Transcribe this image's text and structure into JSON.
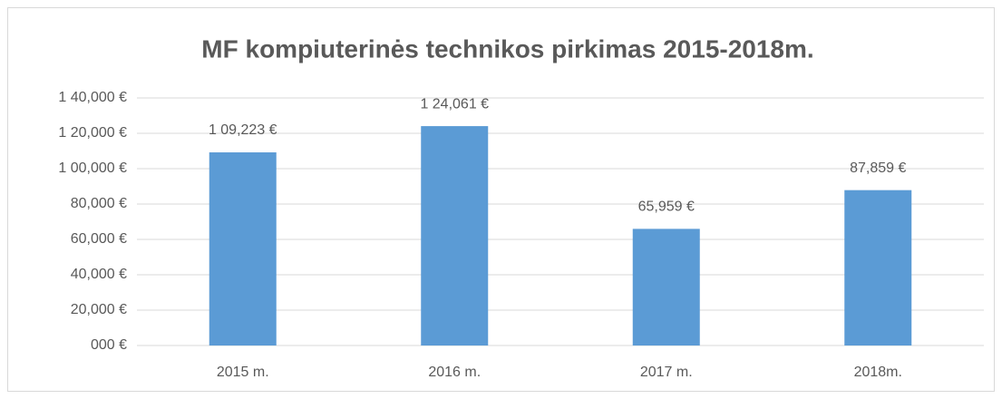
{
  "chart_data": {
    "type": "bar",
    "title": "MF kompiuterinės technikos pirkimas 2015-2018m.",
    "categories": [
      "2015 m.",
      "2016 m.",
      "2017 m.",
      "2018m."
    ],
    "values": [
      109223,
      124061,
      65959,
      87859
    ],
    "value_labels": [
      "1 09,223 €",
      "1 24,061 €",
      "65,959 €",
      "87,859 €"
    ],
    "color": "#5b9bd5",
    "ylim": [
      0,
      140000
    ],
    "yticks": [
      {
        "value": 0,
        "label": "000 €"
      },
      {
        "value": 20000,
        "label": "20,000 €"
      },
      {
        "value": 40000,
        "label": "40,000 €"
      },
      {
        "value": 60000,
        "label": "60,000 €"
      },
      {
        "value": 80000,
        "label": "80,000 €"
      },
      {
        "value": 100000,
        "label": "1 00,000 €"
      },
      {
        "value": 120000,
        "label": "1 20,000 €"
      },
      {
        "value": 140000,
        "label": "1 40,000 €"
      }
    ],
    "grid": true
  }
}
